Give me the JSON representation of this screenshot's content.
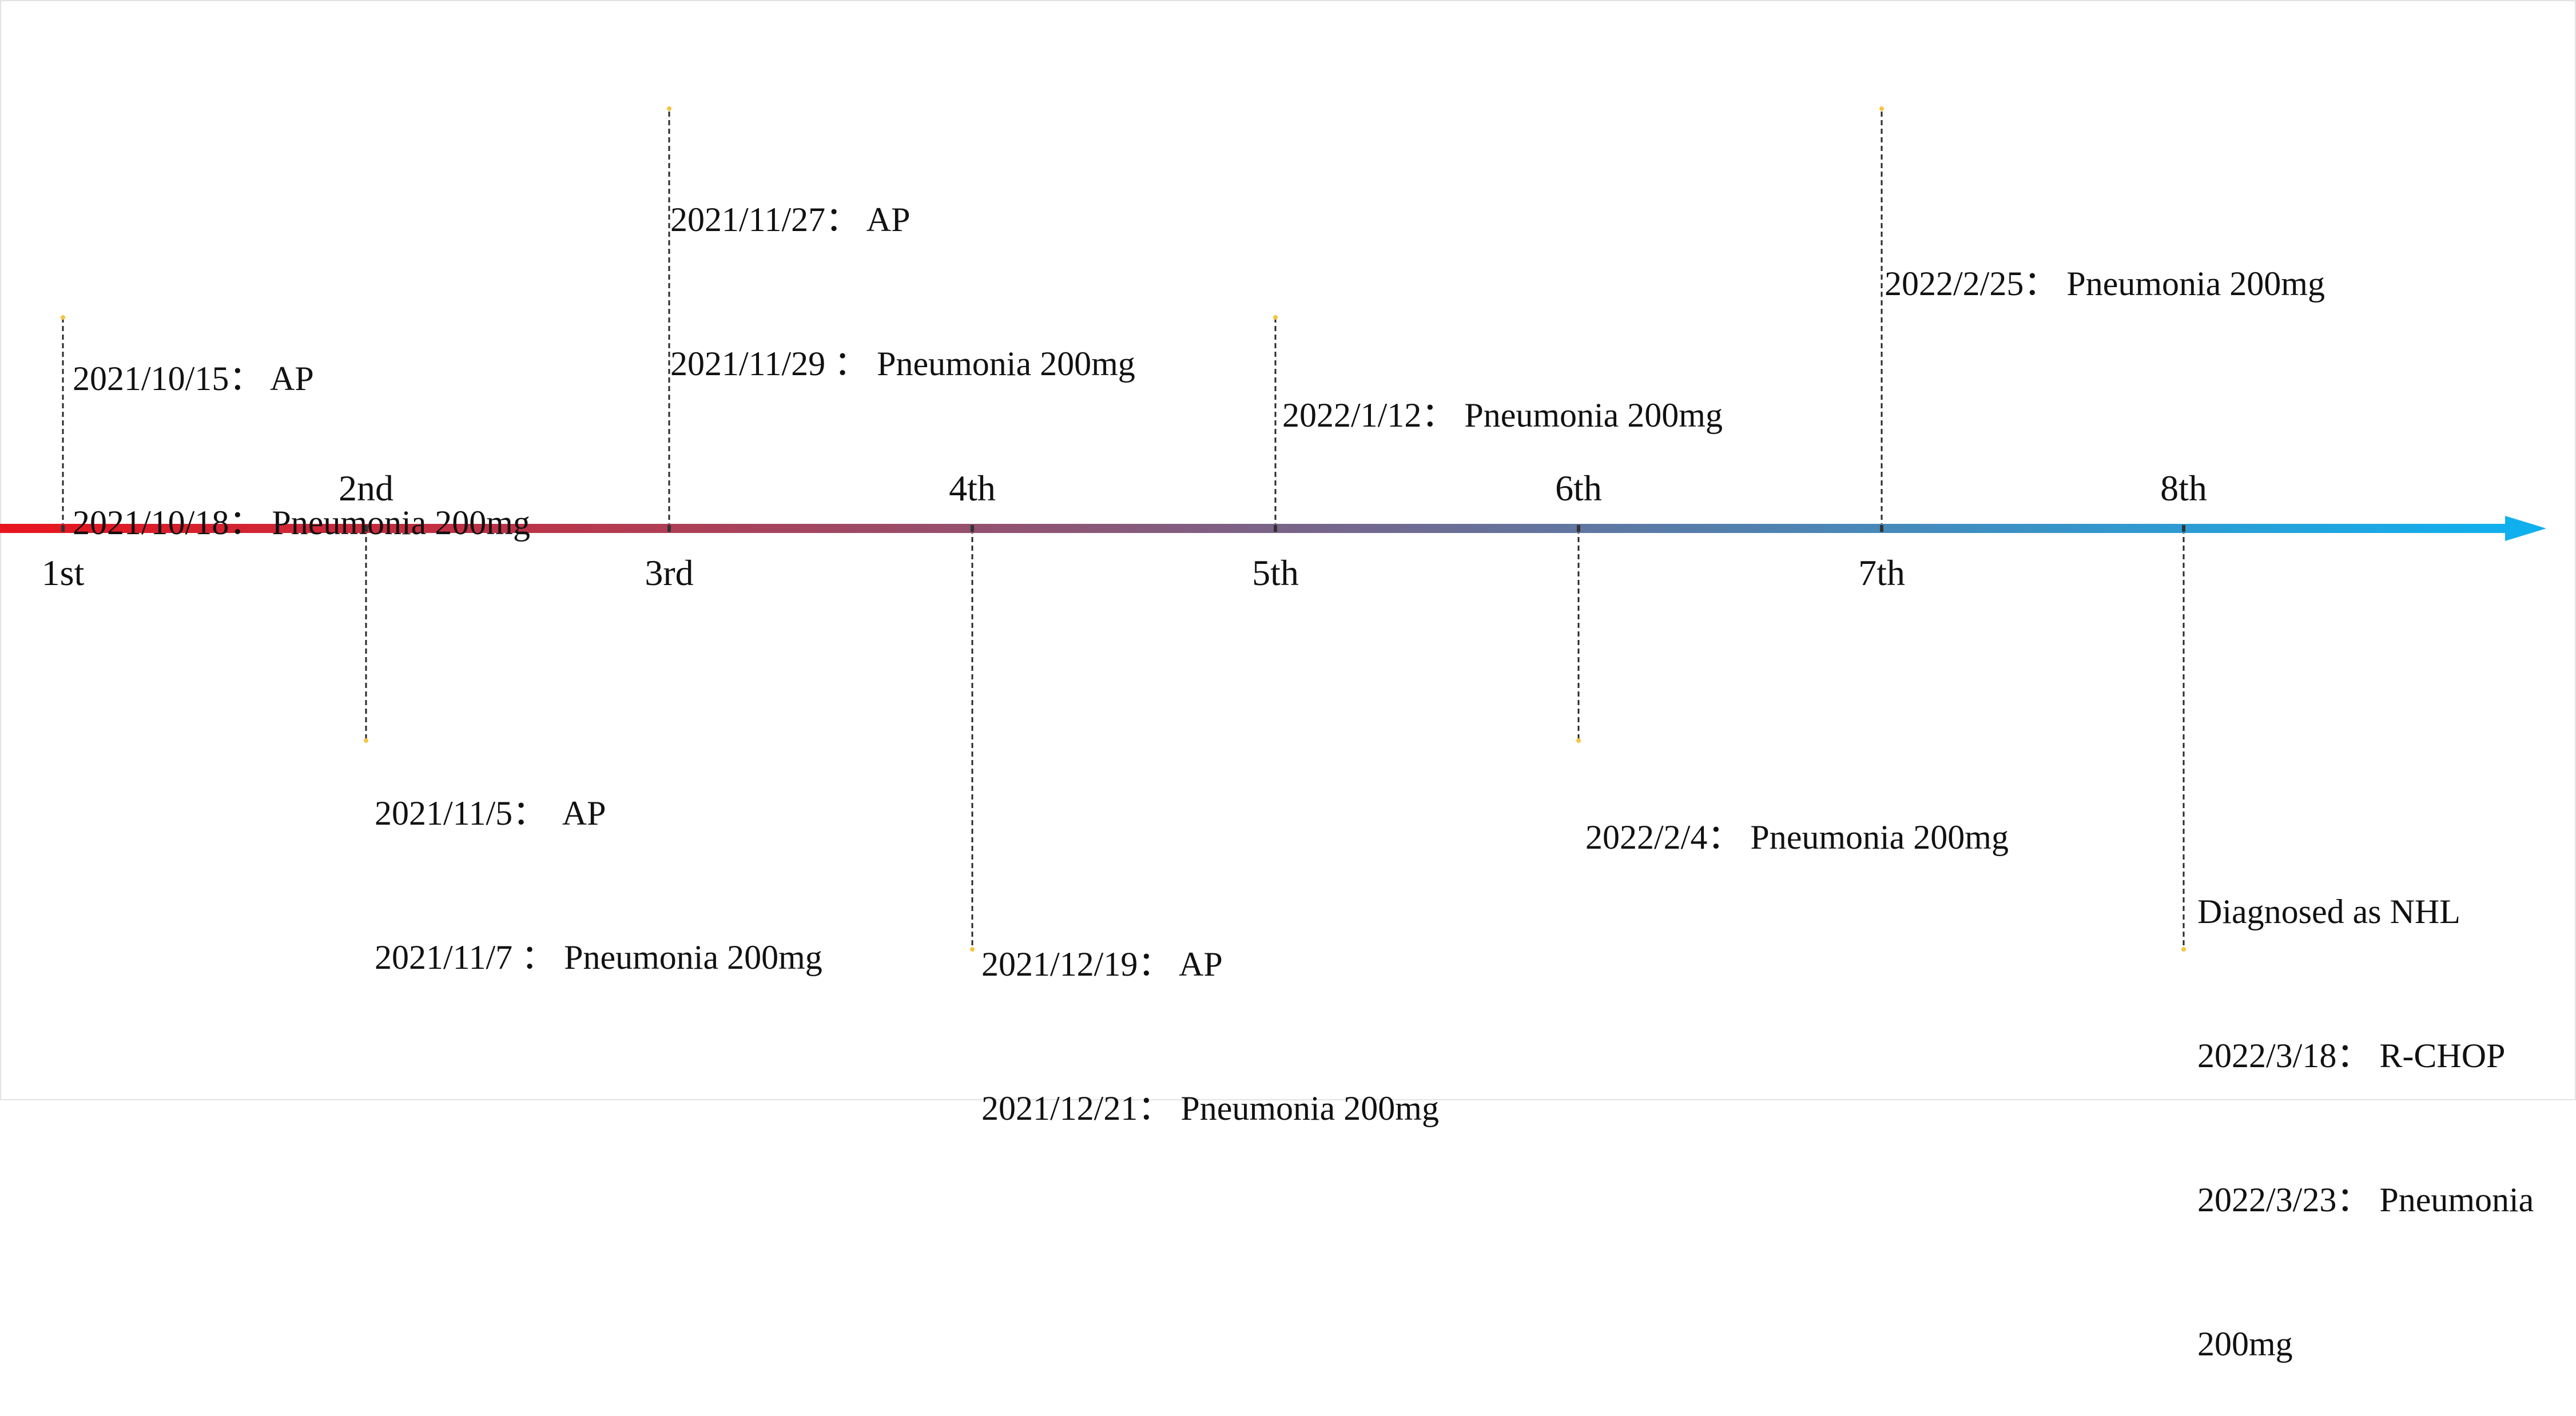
{
  "timeline": {
    "gradient_start": "#e8141e",
    "gradient_end": "#10b0ee",
    "connector_color": "#2a2a2a",
    "endpoint_color": "#f5c542"
  },
  "events": [
    {
      "ordinal": "1st",
      "lines": [
        "2021/10/15： AP",
        "2021/10/18： Pneumonia 200mg"
      ]
    },
    {
      "ordinal": "2nd",
      "lines": [
        "2021/11/5：  AP",
        "2021/11/7 ： Pneumonia 200mg"
      ]
    },
    {
      "ordinal": "3rd",
      "lines": [
        "2021/11/27： AP",
        "2021/11/29 ： Pneumonia 200mg"
      ]
    },
    {
      "ordinal": "4th",
      "lines": [
        "2021/12/19： AP",
        "2021/12/21： Pneumonia 200mg"
      ]
    },
    {
      "ordinal": "5th",
      "lines": [
        "2022/1/12： Pneumonia 200mg"
      ]
    },
    {
      "ordinal": "6th",
      "lines": [
        "2022/2/4： Pneumonia 200mg"
      ]
    },
    {
      "ordinal": "7th",
      "lines": [
        "2022/2/25： Pneumonia 200mg"
      ]
    },
    {
      "ordinal": "8th",
      "lines": [
        "Diagnosed as NHL",
        "2022/3/18： R-CHOP",
        "2022/3/23： Pneumonia",
        "200mg"
      ]
    }
  ]
}
